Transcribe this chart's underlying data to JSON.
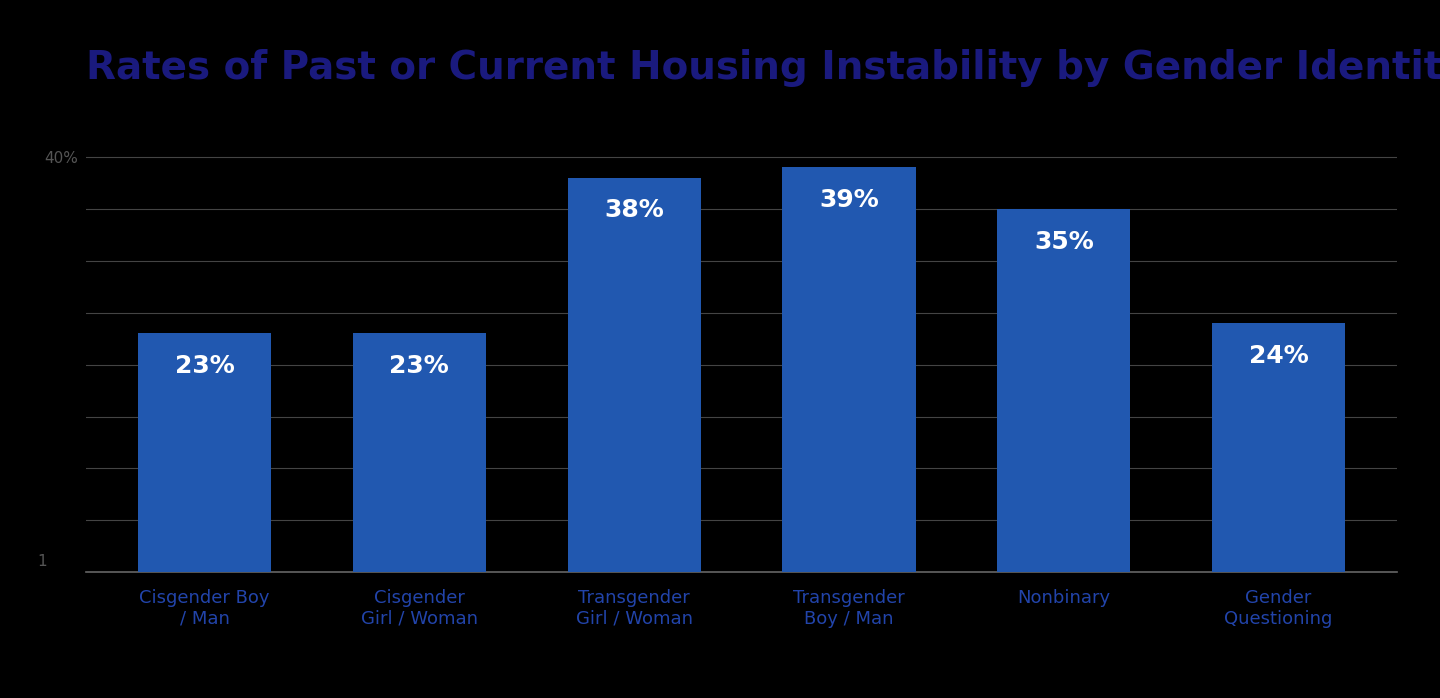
{
  "title": "Rates of Past or Current Housing Instability by Gender Identity",
  "categories": [
    "Cisgender Boy\n/ Man",
    "Cisgender\nGirl / Woman",
    "Transgender\nGirl / Woman",
    "Transgender\nBoy / Man",
    "Nonbinary",
    "Gender\nQuestioning"
  ],
  "values": [
    23,
    23,
    38,
    39,
    35,
    24
  ],
  "bar_color": "#2158B0",
  "label_color": "#FFFFFF",
  "title_color": "#1a1a7e",
  "background_color": "#000000",
  "plot_bg_color": "#000000",
  "ytick_label": "40%",
  "ytick_value": 40,
  "ylim_max": 43,
  "ylabel_fontsize": 11,
  "xlabel_fontsize": 13,
  "title_fontsize": 28,
  "bar_label_fontsize": 18,
  "bar_width": 0.62,
  "grid_color": "#444444",
  "bottom_line_color": "#666666",
  "axis_label_color": "#2244aa",
  "ytick_color": "#555555",
  "one_label_color": "#555555"
}
